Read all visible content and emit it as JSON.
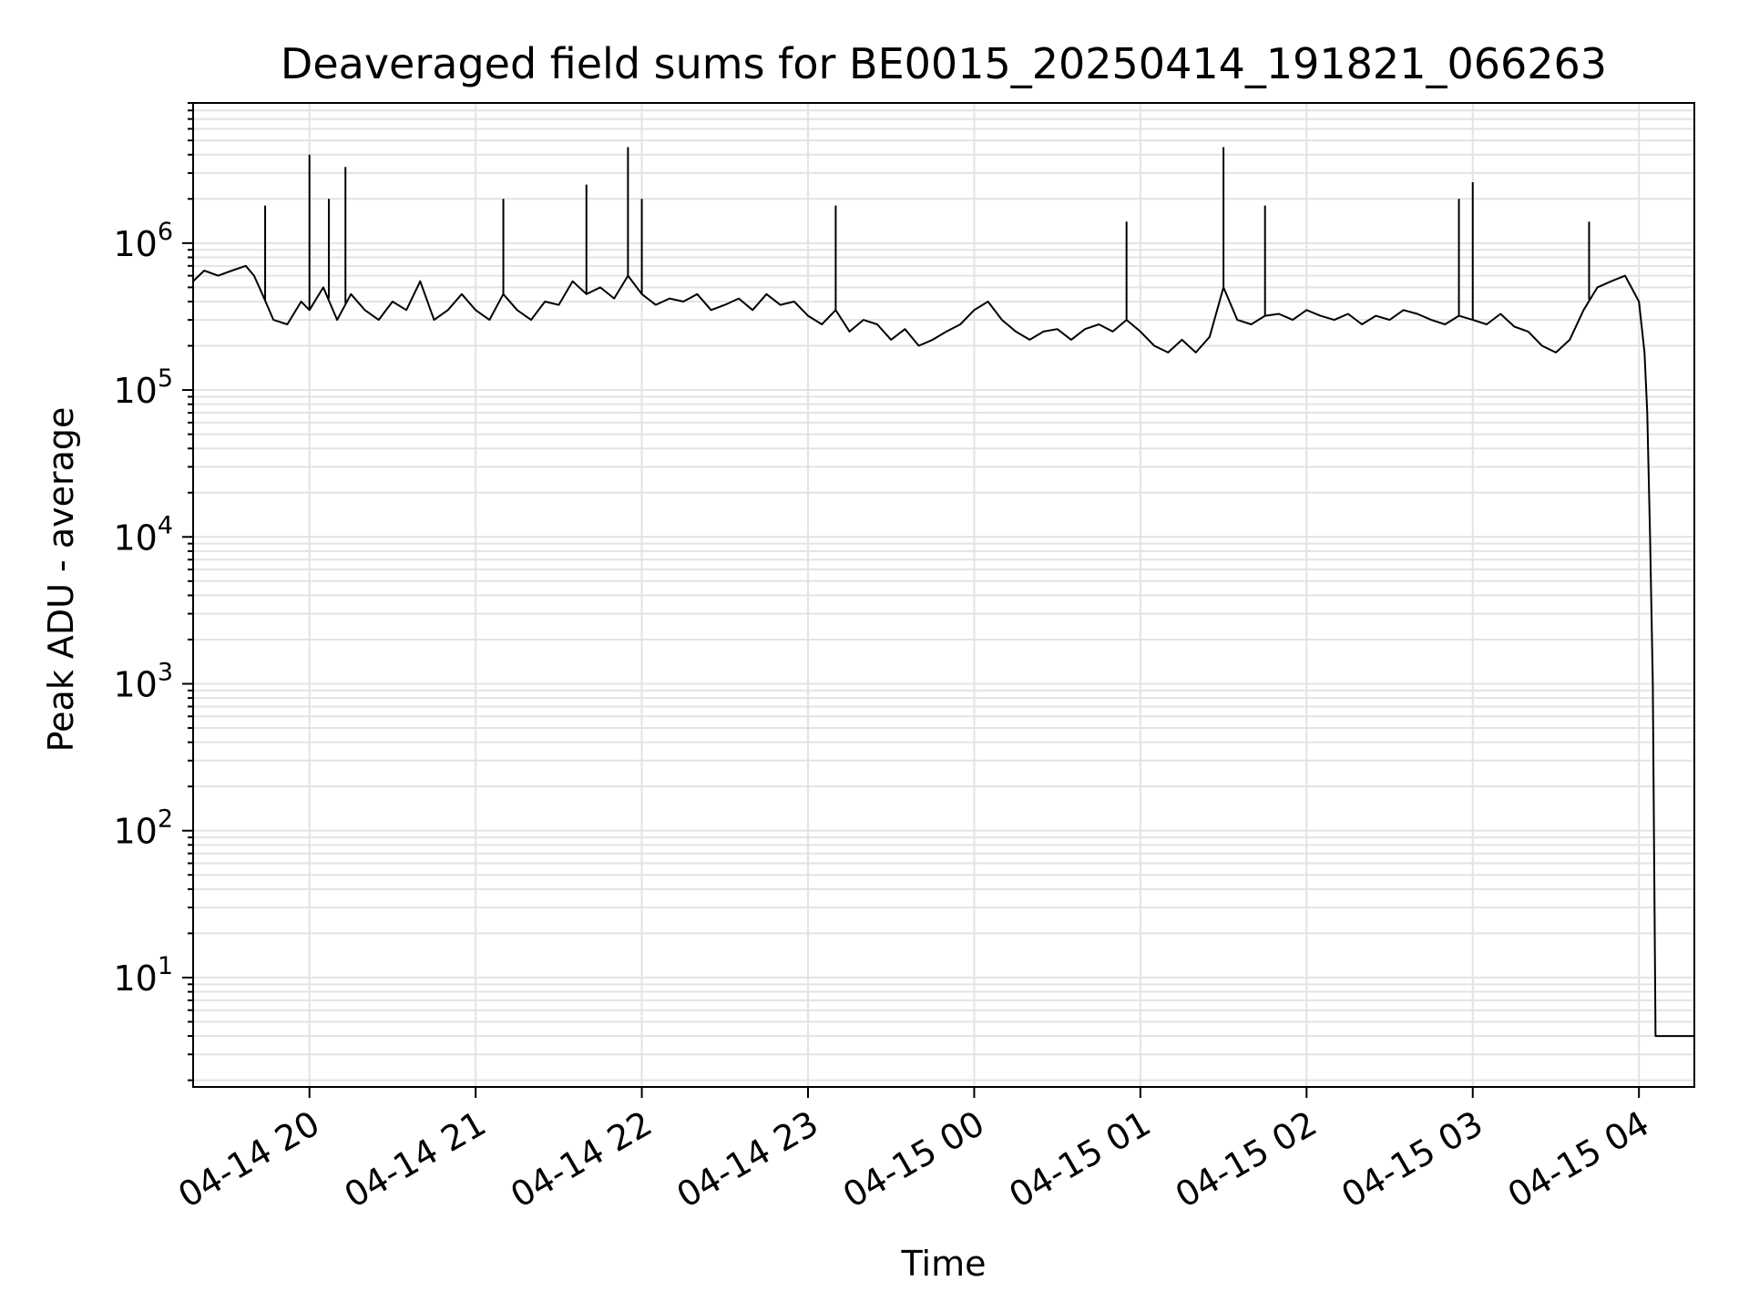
{
  "chart_data": {
    "type": "line",
    "title": "Deaveraged field sums for BE0015_20250414_191821_066263",
    "xlabel": "Time",
    "ylabel": "Peak ADU - average",
    "yscale": "log",
    "ylim": [
      1.8,
      9000000
    ],
    "xlim": [
      "2025-04-14 19:18",
      "2025-04-15 04:20"
    ],
    "grid": true,
    "line_color": "#000000",
    "grid_color": "#e3e3e3",
    "x_ticks": [
      {
        "date": "2025-04-14 20:00",
        "label": "04-14 20"
      },
      {
        "date": "2025-04-14 21:00",
        "label": "04-14 21"
      },
      {
        "date": "2025-04-14 22:00",
        "label": "04-14 22"
      },
      {
        "date": "2025-04-14 23:00",
        "label": "04-14 23"
      },
      {
        "date": "2025-04-15 00:00",
        "label": "04-15 00"
      },
      {
        "date": "2025-04-15 01:00",
        "label": "04-15 01"
      },
      {
        "date": "2025-04-15 02:00",
        "label": "04-15 02"
      },
      {
        "date": "2025-04-15 03:00",
        "label": "04-15 03"
      },
      {
        "date": "2025-04-15 04:00",
        "label": "04-15 04"
      }
    ],
    "y_ticks": [
      {
        "value": 10,
        "base": "10",
        "exp": "1"
      },
      {
        "value": 100,
        "base": "10",
        "exp": "2"
      },
      {
        "value": 1000,
        "base": "10",
        "exp": "3"
      },
      {
        "value": 10000,
        "base": "10",
        "exp": "4"
      },
      {
        "value": 100000,
        "base": "10",
        "exp": "5"
      },
      {
        "value": 1000000,
        "base": "10",
        "exp": "6"
      }
    ],
    "series": [
      {
        "x": [
          "2025-04-14 19:18",
          "2025-04-14 19:22",
          "2025-04-14 19:27",
          "2025-04-14 19:32",
          "2025-04-14 19:37",
          "2025-04-14 19:40",
          "2025-04-14 19:43",
          "2025-04-14 19:47",
          "2025-04-14 19:52",
          "2025-04-14 19:57",
          "2025-04-14 20:00",
          "2025-04-14 20:05",
          "2025-04-14 20:10",
          "2025-04-14 20:15",
          "2025-04-14 20:20",
          "2025-04-14 20:25",
          "2025-04-14 20:30",
          "2025-04-14 20:35",
          "2025-04-14 20:40",
          "2025-04-14 20:45",
          "2025-04-14 20:50",
          "2025-04-14 20:55",
          "2025-04-14 21:00",
          "2025-04-14 21:05",
          "2025-04-14 21:10",
          "2025-04-14 21:15",
          "2025-04-14 21:20",
          "2025-04-14 21:25",
          "2025-04-14 21:30",
          "2025-04-14 21:35",
          "2025-04-14 21:40",
          "2025-04-14 21:45",
          "2025-04-14 21:50",
          "2025-04-14 21:55",
          "2025-04-14 22:00",
          "2025-04-14 22:05",
          "2025-04-14 22:10",
          "2025-04-14 22:15",
          "2025-04-14 22:20",
          "2025-04-14 22:25",
          "2025-04-14 22:30",
          "2025-04-14 22:35",
          "2025-04-14 22:40",
          "2025-04-14 22:45",
          "2025-04-14 22:50",
          "2025-04-14 22:55",
          "2025-04-14 23:00",
          "2025-04-14 23:05",
          "2025-04-14 23:10",
          "2025-04-14 23:15",
          "2025-04-14 23:20",
          "2025-04-14 23:25",
          "2025-04-14 23:30",
          "2025-04-14 23:35",
          "2025-04-14 23:40",
          "2025-04-14 23:45",
          "2025-04-14 23:50",
          "2025-04-14 23:55",
          "2025-04-15 00:00",
          "2025-04-15 00:05",
          "2025-04-15 00:10",
          "2025-04-15 00:15",
          "2025-04-15 00:20",
          "2025-04-15 00:25",
          "2025-04-15 00:30",
          "2025-04-15 00:35",
          "2025-04-15 00:40",
          "2025-04-15 00:45",
          "2025-04-15 00:50",
          "2025-04-15 00:55",
          "2025-04-15 01:00",
          "2025-04-15 01:05",
          "2025-04-15 01:10",
          "2025-04-15 01:15",
          "2025-04-15 01:20",
          "2025-04-15 01:25",
          "2025-04-15 01:30",
          "2025-04-15 01:35",
          "2025-04-15 01:40",
          "2025-04-15 01:45",
          "2025-04-15 01:50",
          "2025-04-15 01:55",
          "2025-04-15 02:00",
          "2025-04-15 02:05",
          "2025-04-15 02:10",
          "2025-04-15 02:15",
          "2025-04-15 02:20",
          "2025-04-15 02:25",
          "2025-04-15 02:30",
          "2025-04-15 02:35",
          "2025-04-15 02:40",
          "2025-04-15 02:45",
          "2025-04-15 02:50",
          "2025-04-15 02:55",
          "2025-04-15 03:00",
          "2025-04-15 03:05",
          "2025-04-15 03:10",
          "2025-04-15 03:15",
          "2025-04-15 03:20",
          "2025-04-15 03:25",
          "2025-04-15 03:30",
          "2025-04-15 03:35",
          "2025-04-15 03:40",
          "2025-04-15 03:45",
          "2025-04-15 03:50",
          "2025-04-15 03:55",
          "2025-04-15 04:00",
          "2025-04-15 04:02",
          "2025-04-15 04:03",
          "2025-04-15 04:04",
          "2025-04-15 04:05",
          "2025-04-15 04:06",
          "2025-04-15 04:07",
          "2025-04-15 04:20"
        ],
        "y": [
          550000,
          650000,
          600000,
          650000,
          700000,
          600000,
          450000,
          300000,
          280000,
          400000,
          350000,
          500000,
          300000,
          450000,
          350000,
          300000,
          400000,
          350000,
          550000,
          300000,
          350000,
          450000,
          350000,
          300000,
          450000,
          350000,
          300000,
          400000,
          380000,
          550000,
          450000,
          500000,
          420000,
          600000,
          450000,
          380000,
          420000,
          400000,
          450000,
          350000,
          380000,
          420000,
          350000,
          450000,
          380000,
          400000,
          320000,
          280000,
          350000,
          250000,
          300000,
          280000,
          220000,
          260000,
          200000,
          220000,
          250000,
          280000,
          350000,
          400000,
          300000,
          250000,
          220000,
          250000,
          260000,
          220000,
          260000,
          280000,
          250000,
          300000,
          250000,
          200000,
          180000,
          220000,
          180000,
          230000,
          500000,
          300000,
          280000,
          320000,
          330000,
          300000,
          350000,
          320000,
          300000,
          330000,
          280000,
          320000,
          300000,
          350000,
          330000,
          300000,
          280000,
          320000,
          300000,
          280000,
          330000,
          270000,
          250000,
          200000,
          180000,
          220000,
          350000,
          500000,
          550000,
          600000,
          400000,
          180000,
          70000,
          10000,
          1000,
          4,
          4,
          4
        ],
        "spikes": [
          {
            "x": "2025-04-14 20:00",
            "y": 4000000
          },
          {
            "x": "2025-04-14 20:13",
            "y": 3300000
          },
          {
            "x": "2025-04-14 20:07",
            "y": 2000000
          },
          {
            "x": "2025-04-14 19:44",
            "y": 1800000
          },
          {
            "x": "2025-04-14 21:10",
            "y": 2000000
          },
          {
            "x": "2025-04-14 21:40",
            "y": 2500000
          },
          {
            "x": "2025-04-14 21:55",
            "y": 4500000
          },
          {
            "x": "2025-04-14 22:00",
            "y": 2000000
          },
          {
            "x": "2025-04-14 23:10",
            "y": 1800000
          },
          {
            "x": "2025-04-15 00:55",
            "y": 1400000
          },
          {
            "x": "2025-04-15 01:30",
            "y": 4500000
          },
          {
            "x": "2025-04-15 01:45",
            "y": 1800000
          },
          {
            "x": "2025-04-15 02:55",
            "y": 2000000
          },
          {
            "x": "2025-04-15 03:00",
            "y": 2600000
          },
          {
            "x": "2025-04-15 03:42",
            "y": 1400000
          }
        ]
      }
    ]
  }
}
